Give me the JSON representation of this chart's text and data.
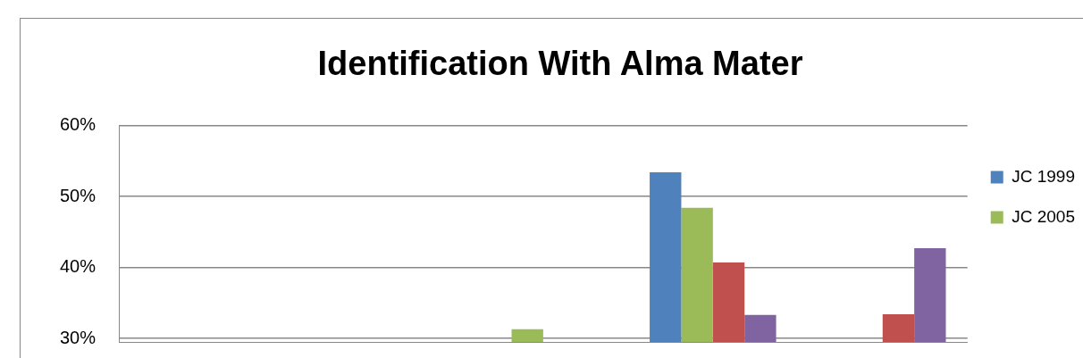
{
  "chart_data": {
    "type": "bar",
    "title": "Identification With Alma Mater",
    "categories": [
      null,
      null,
      null,
      null,
      null
    ],
    "series": [
      {
        "name": "JC 1999",
        "color": "#4f81bd",
        "values": [
          null,
          null,
          null,
          53.4,
          null
        ]
      },
      {
        "name": "JC 2005",
        "color": "#9bbb59",
        "values": [
          null,
          null,
          31.3,
          48.4,
          null
        ]
      },
      {
        "color": "#c0504d",
        "values": [
          null,
          null,
          null,
          40.7,
          33.4
        ]
      },
      {
        "color": "#8064a2",
        "values": [
          null,
          null,
          null,
          33.3,
          42.7
        ]
      }
    ],
    "ylim": [
      29.5,
      60
    ],
    "yticks": [
      {
        "value": 30,
        "label": "30%"
      },
      {
        "value": 40,
        "label": "40%"
      },
      {
        "value": 50,
        "label": "50%"
      },
      {
        "value": 60,
        "label": "60%"
      }
    ],
    "grid": "y",
    "legend": "right"
  }
}
